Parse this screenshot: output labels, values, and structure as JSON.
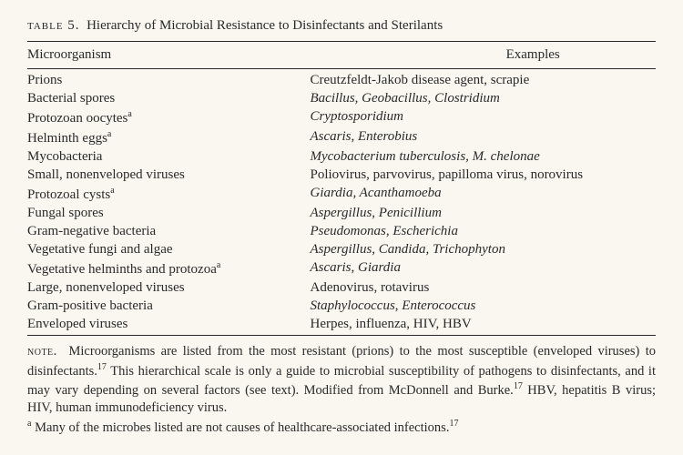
{
  "title": {
    "label": "table 5.",
    "text": "Hierarchy of Microbial Resistance to Disinfectants and Sterilants"
  },
  "headers": {
    "microorganism": "Microorganism",
    "examples": "Examples"
  },
  "rows": [
    {
      "micro": "Prions",
      "sup": "",
      "ex_pre": "Creutzfeldt-Jakob disease agent, scrapie",
      "ex_it": ""
    },
    {
      "micro": "Bacterial spores",
      "sup": "",
      "ex_pre": "",
      "ex_it": "Bacillus, Geobacillus, Clostridium"
    },
    {
      "micro": "Protozoan oocytes",
      "sup": "a",
      "ex_pre": "",
      "ex_it": "Cryptosporidium"
    },
    {
      "micro": "Helminth eggs",
      "sup": "a",
      "ex_pre": "",
      "ex_it": "Ascaris, Enterobius"
    },
    {
      "micro": "Mycobacteria",
      "sup": "",
      "ex_pre": "",
      "ex_it": "Mycobacterium tuberculosis, M. chelonae"
    },
    {
      "micro": "Small, nonenveloped viruses",
      "sup": "",
      "ex_pre": "Poliovirus, parvovirus, papilloma virus, norovirus",
      "ex_it": ""
    },
    {
      "micro": "Protozoal cysts",
      "sup": "a",
      "ex_pre": "",
      "ex_it": "Giardia, Acanthamoeba"
    },
    {
      "micro": "Fungal spores",
      "sup": "",
      "ex_pre": "",
      "ex_it": "Aspergillus, Penicillium"
    },
    {
      "micro": "Gram-negative bacteria",
      "sup": "",
      "ex_pre": "",
      "ex_it": "Pseudomonas, Escherichia"
    },
    {
      "micro": "Vegetative fungi and algae",
      "sup": "",
      "ex_pre": "",
      "ex_it": "Aspergillus, Candida, Trichophyton"
    },
    {
      "micro": "Vegetative helminths and protozoa",
      "sup": "a",
      "ex_pre": "",
      "ex_it": "Ascaris, Giardia"
    },
    {
      "micro": "Large, nonenveloped viruses",
      "sup": "",
      "ex_pre": "Adenovirus, rotavirus",
      "ex_it": ""
    },
    {
      "micro": "Gram-positive bacteria",
      "sup": "",
      "ex_pre": "",
      "ex_it": "Staphylococcus, Enterococcus"
    },
    {
      "micro": "Enveloped viruses",
      "sup": "",
      "ex_pre": "Herpes, influenza, HIV, HBV",
      "ex_it": ""
    }
  ],
  "note": {
    "label": "note.",
    "body1": "Microorganisms are listed from the most resistant (prions) to the most susceptible (enveloped viruses) to disinfectants.",
    "cite1": "17",
    "body2": " This hierarchical scale is only a guide to microbial susceptibility of pathogens to disinfectants, and it may vary depending on several factors (see text). Modified from McDonnell and Burke.",
    "cite2": "17",
    "body3": " HBV, hepatitis B virus; HIV, human immunodeficiency virus."
  },
  "footnote": {
    "marker": "a",
    "text": " Many of the microbes listed are not causes of healthcare-associated infections.",
    "cite": "17"
  }
}
